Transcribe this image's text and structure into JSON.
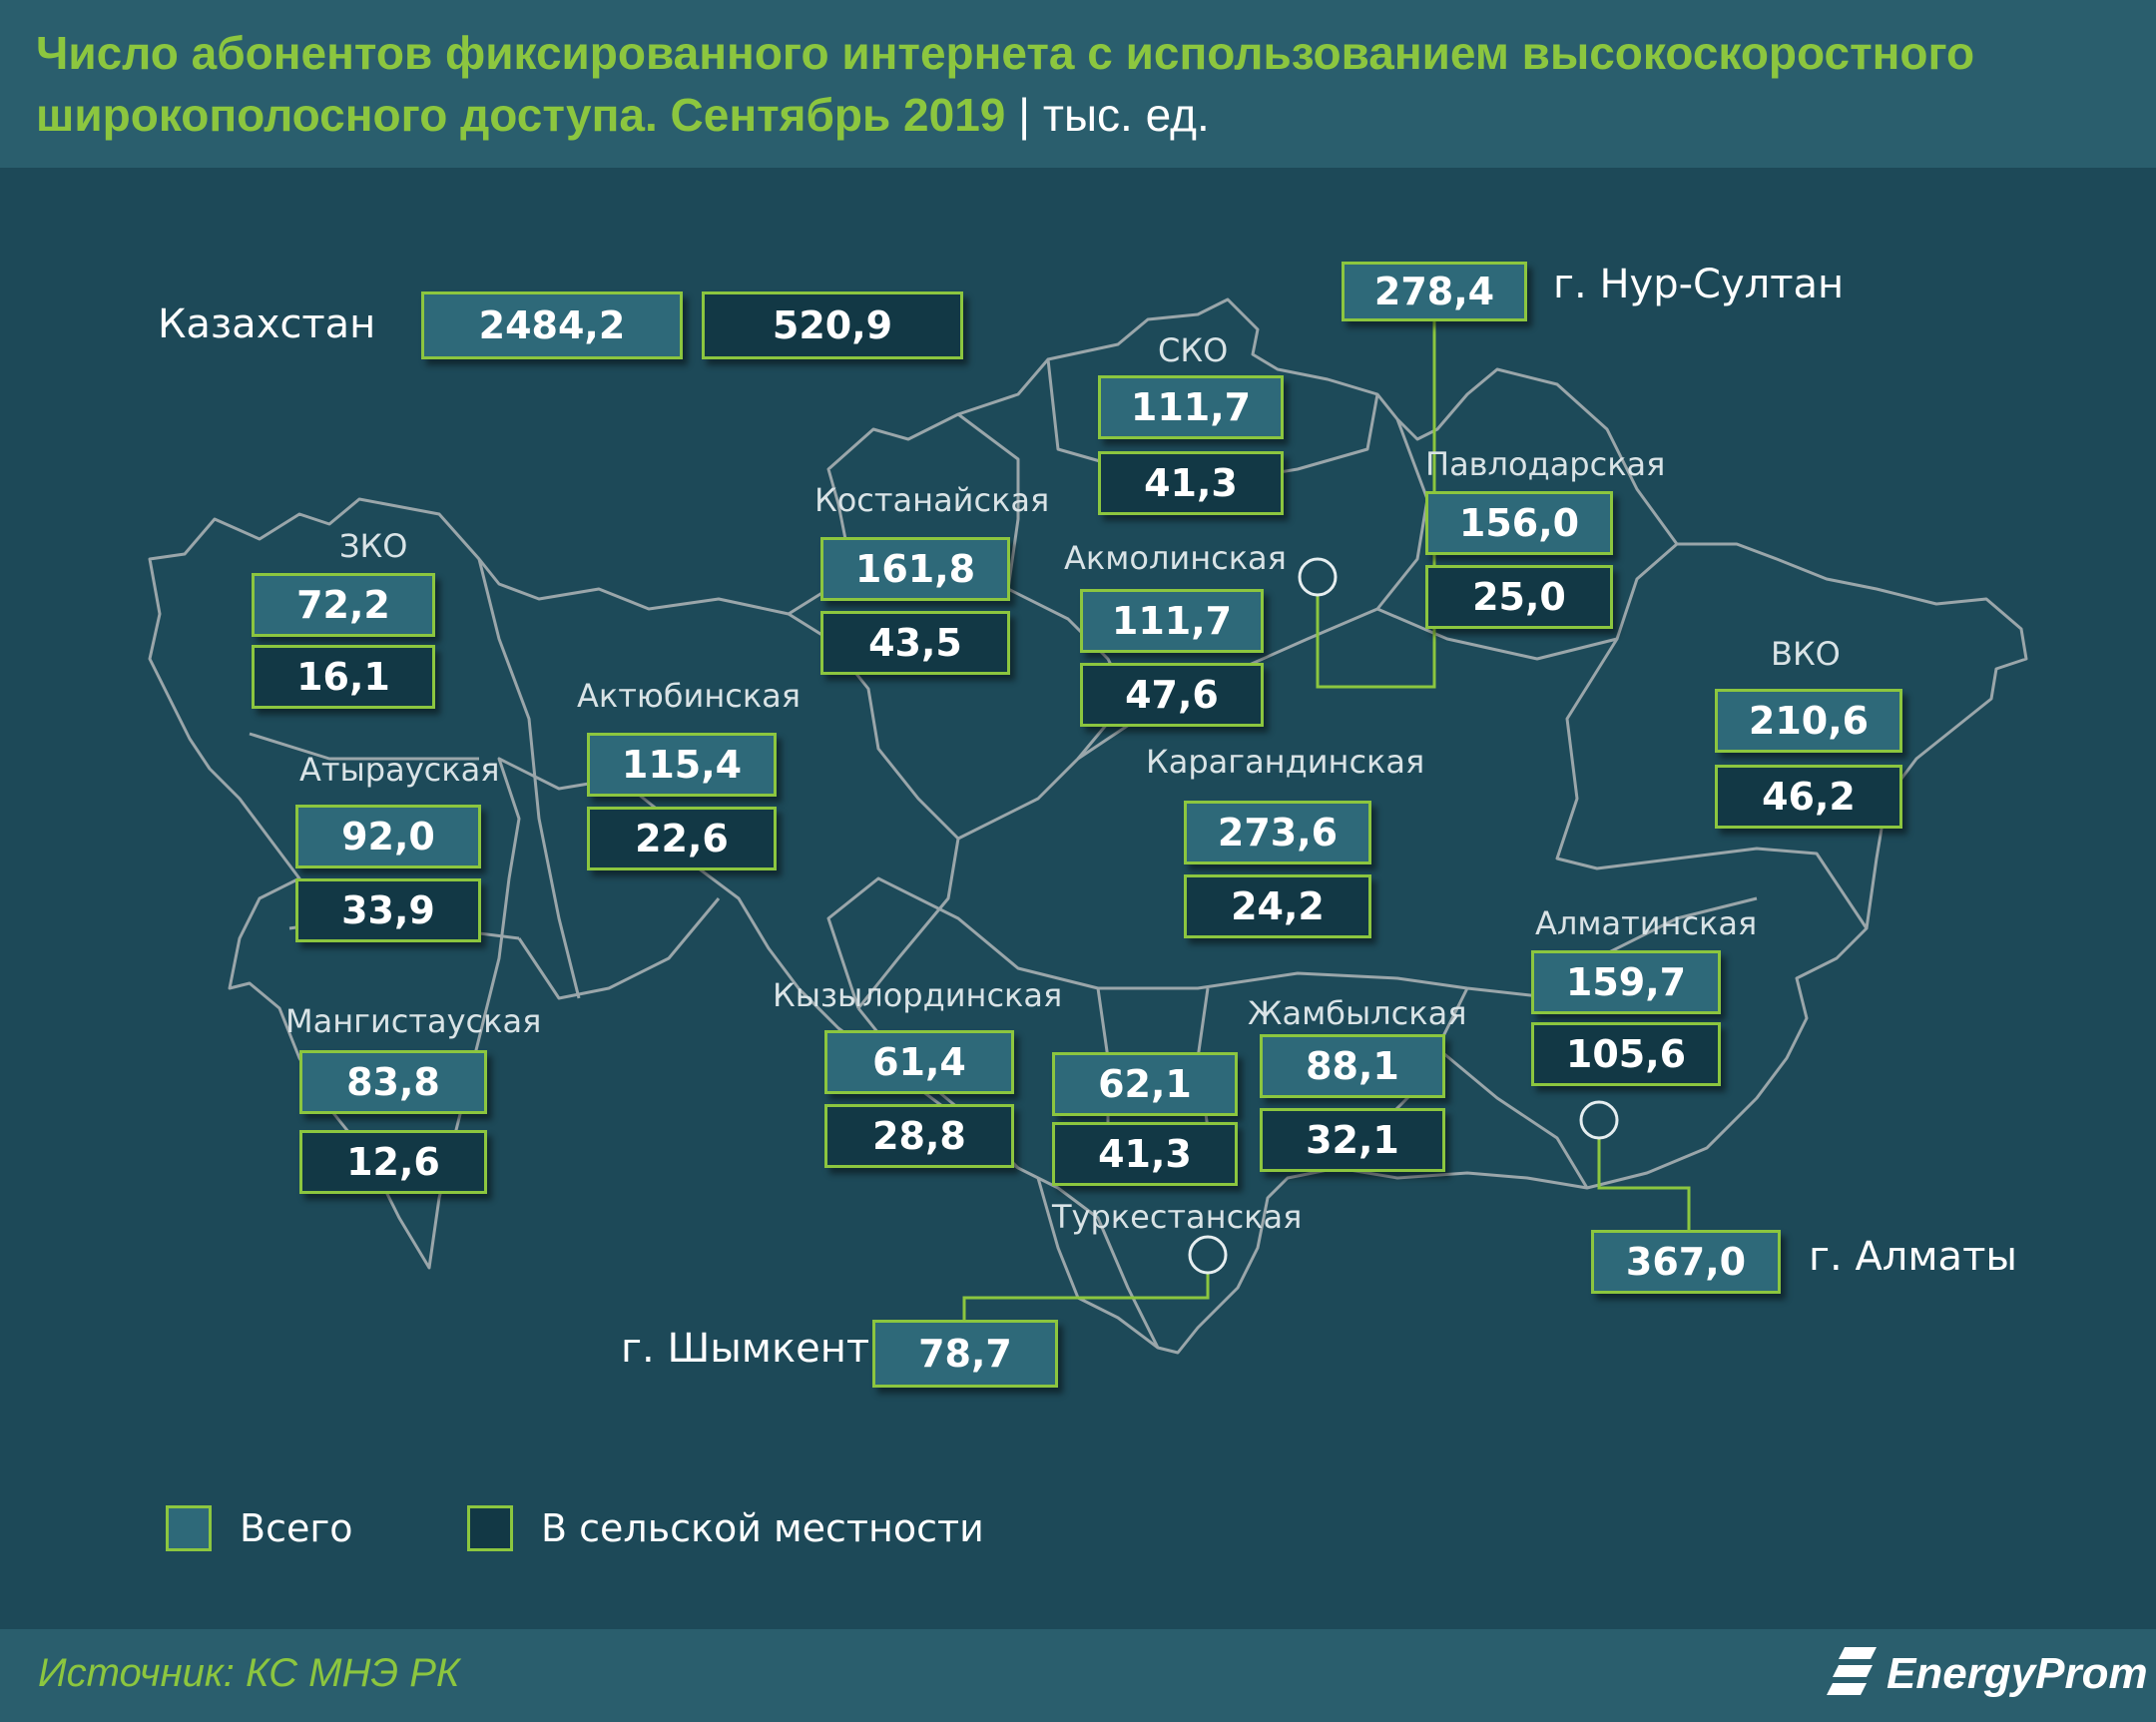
{
  "title": {
    "line1": "Число абонентов фиксированного интернета с использованием высокоскоростного",
    "line2": "широкополосного доступа. Сентябрь 2019",
    "unit": "| тыс. ед."
  },
  "colors": {
    "accent": "#8cc63f",
    "total_fill": "#2e6979",
    "rural_fill": "#123845",
    "background": "#1d4958"
  },
  "country": {
    "name": "Казахстан",
    "total": "2484,2",
    "rural": "520,9"
  },
  "regions": {
    "zko": {
      "name": "ЗКО",
      "total": "72,2",
      "rural": "16,1"
    },
    "atyrau": {
      "name": "Атырауская",
      "total": "92,0",
      "rural": "33,9"
    },
    "mangistau": {
      "name": "Мангистауская",
      "total": "83,8",
      "rural": "12,6"
    },
    "aktobe": {
      "name": "Актюбинская",
      "total": "115,4",
      "rural": "22,6"
    },
    "kostanay": {
      "name": "Костанайская",
      "total": "161,8",
      "rural": "43,5"
    },
    "sko": {
      "name": "СКО",
      "total": "111,7",
      "rural": "41,3"
    },
    "akmola": {
      "name": "Акмолинская",
      "total": "111,7",
      "rural": "47,6"
    },
    "pavlodar": {
      "name": "Павлодарская",
      "total": "156,0",
      "rural": "25,0"
    },
    "vko": {
      "name": "ВКО",
      "total": "210,6",
      "rural": "46,2"
    },
    "karaganda": {
      "name": "Карагандинская",
      "total": "273,6",
      "rural": "24,2"
    },
    "kyzylorda": {
      "name": "Кызылординская",
      "total": "61,4",
      "rural": "28,8"
    },
    "turkestan": {
      "name": "Туркестанская",
      "total": "62,1",
      "rural": "41,3"
    },
    "zhambyl": {
      "name": "Жамбылская",
      "total": "88,1",
      "rural": "32,1"
    },
    "almaty_reg": {
      "name": "Алматинская",
      "total": "159,7",
      "rural": "105,6"
    }
  },
  "cities": {
    "nur_sultan": {
      "name": "г. Нур-Султан",
      "total": "278,4"
    },
    "almaty": {
      "name": "г. Алматы",
      "total": "367,0"
    },
    "shymkent": {
      "name": "г. Шымкент",
      "total": "78,7"
    }
  },
  "legend": {
    "total_label": "Всего",
    "rural_label": "В сельской местности"
  },
  "footer": {
    "source": "Источник: КС МНЭ РК",
    "brand": "EnergyProm"
  }
}
